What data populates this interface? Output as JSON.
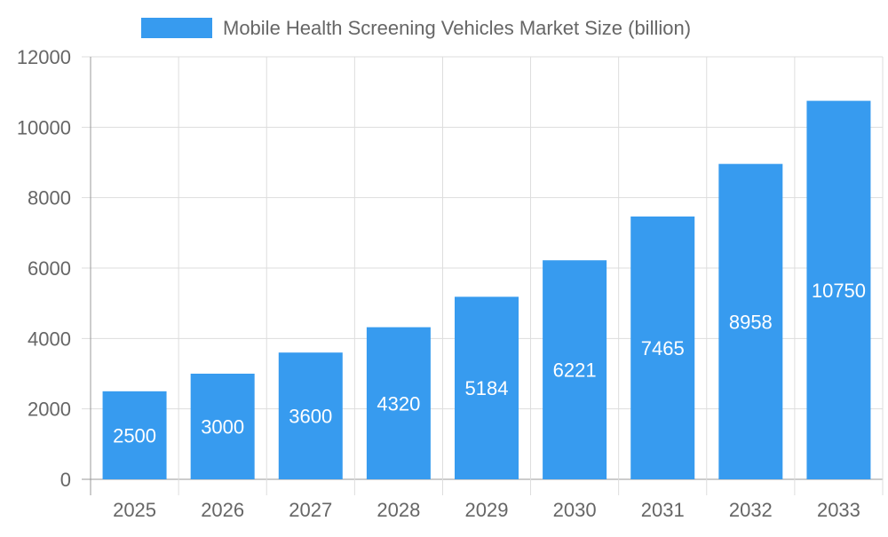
{
  "chart_data": {
    "type": "bar",
    "title": "",
    "xlabel": "",
    "ylabel": "",
    "categories": [
      "2025",
      "2026",
      "2027",
      "2028",
      "2029",
      "2030",
      "2031",
      "2032",
      "2033"
    ],
    "series": [
      {
        "name": "Mobile Health Screening Vehicles Market Size (billion)",
        "values": [
          2500,
          3000,
          3600,
          4320,
          5184,
          6221,
          7465,
          8958,
          10750
        ],
        "color": "#379BEF"
      }
    ],
    "ylim": [
      0,
      12000
    ],
    "yticks": [
      0,
      2000,
      4000,
      6000,
      8000,
      10000,
      12000
    ],
    "grid": true,
    "legend": "top-center",
    "data_labels": true
  }
}
